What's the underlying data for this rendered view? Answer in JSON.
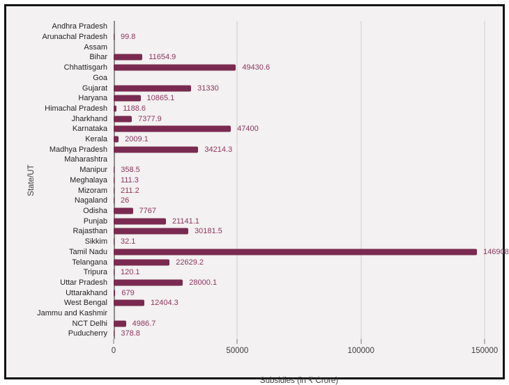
{
  "frame": {
    "background": "#f3f1f1",
    "border_color": "#141414"
  },
  "chart_data": {
    "type": "bar",
    "orientation": "horizontal",
    "title": "",
    "xlabel": "Subsidies (in ₹ Crore)",
    "ylabel": "State/UT",
    "xlim": [
      0,
      150000
    ],
    "xticks": [
      0,
      50000,
      100000,
      150000
    ],
    "xtick_labels": [
      "0",
      "50000",
      "100000",
      "150000"
    ],
    "grid": true,
    "legend": "none",
    "bar_color": "#7a2a50",
    "value_label_color": "#8e3560",
    "categories": [
      "Andhra Pradesh",
      "Arunachal Pradesh",
      "Assam",
      "Bihar",
      "Chhattisgarh",
      "Goa",
      "Gujarat",
      "Haryana",
      "Himachal Pradesh",
      "Jharkhand",
      "Karnataka",
      "Kerala",
      "Madhya Pradesh",
      "Maharashtra",
      "Manipur",
      "Meghalaya",
      "Mizoram",
      "Nagaland",
      "Odisha",
      "Punjab",
      "Rajasthan",
      "Sikkim",
      "Tamil Nadu",
      "Telangana",
      "Tripura",
      "Uttar Pradesh",
      "Uttarakhand",
      "West Bengal",
      "Jammu and Kashmir",
      "NCT Delhi",
      "Puducherry"
    ],
    "values": [
      null,
      99.8,
      null,
      11654.9,
      49430.6,
      null,
      31330,
      10865.1,
      1188.6,
      7377.9,
      47400,
      2009.1,
      34214.3,
      null,
      358.5,
      111.3,
      211.2,
      26,
      7767,
      21141.1,
      30181.5,
      32.1,
      146908,
      22629.2,
      120.1,
      28000.1,
      679,
      12404.3,
      null,
      4986.7,
      378.8
    ],
    "value_labels": [
      "",
      "99.8",
      "",
      "11654.9",
      "49430.6",
      "",
      "31330",
      "10865.1",
      "1188.6",
      "7377.9",
      "47400",
      "2009.1",
      "34214.3",
      "",
      "358.5",
      "111.3",
      "211.2",
      "26",
      "7767",
      "21141.1",
      "30181.5",
      "32.1",
      "146908",
      "22629.2",
      "120.1",
      "28000.1",
      "679",
      "12404.3",
      "",
      "4986.7",
      "378.8"
    ]
  }
}
